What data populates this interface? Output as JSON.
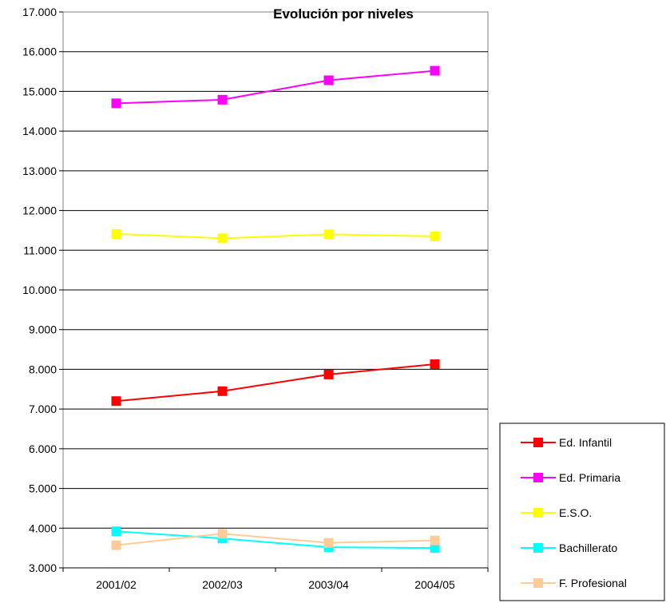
{
  "chart_data": {
    "type": "line",
    "title": "Evolución por niveles",
    "xlabel": "",
    "ylabel": "",
    "categories": [
      "2001/02",
      "2002/03",
      "2003/04",
      "2004/05"
    ],
    "ylim": [
      3000,
      17000
    ],
    "y_tick_step": 1000,
    "y_tick_labels": [
      "3.000",
      "4.000",
      "5.000",
      "6.000",
      "7.000",
      "8.000",
      "9.000",
      "10.000",
      "11.000",
      "12.000",
      "13.000",
      "14.000",
      "15.000",
      "16.000",
      "17.000"
    ],
    "grid": true,
    "legend_position": "bottom-right",
    "series": [
      {
        "name": "Ed. Infantil",
        "color": "#ff0000",
        "values": [
          7200,
          7450,
          7870,
          8130
        ]
      },
      {
        "name": "Ed. Primaria",
        "color": "#ff00ff",
        "values": [
          14700,
          14790,
          15280,
          15520
        ]
      },
      {
        "name": "E.S.O.",
        "color": "#ffff00",
        "values": [
          11410,
          11300,
          11400,
          11350
        ]
      },
      {
        "name": "Bachillerato",
        "color": "#00ffff",
        "values": [
          3920,
          3740,
          3520,
          3500
        ]
      },
      {
        "name": "F.  Profesional",
        "color": "#ffcc99",
        "values": [
          3570,
          3860,
          3630,
          3690
        ]
      }
    ]
  }
}
